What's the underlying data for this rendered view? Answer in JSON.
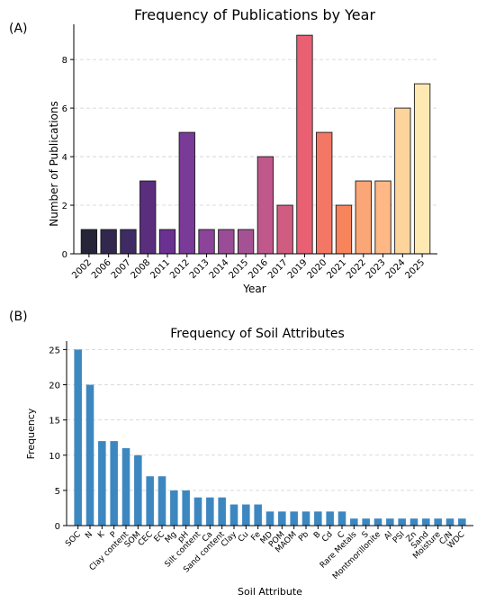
{
  "chart_data": [
    {
      "panel_label": "(A)",
      "type": "bar",
      "title": "Frequency of Publications by Year",
      "xlabel": "Year",
      "ylabel": "Number of Publications",
      "ylim": [
        0,
        9.45
      ],
      "yticks": [
        0,
        2,
        4,
        6,
        8
      ],
      "grid": "y-dashed",
      "categories": [
        "2002",
        "2006",
        "2007",
        "2008",
        "2011",
        "2012",
        "2013",
        "2014",
        "2015",
        "2016",
        "2017",
        "2019",
        "2020",
        "2021",
        "2022",
        "2023",
        "2024",
        "2025"
      ],
      "values": [
        1,
        1,
        1,
        3,
        1,
        5,
        1,
        1,
        1,
        4,
        2,
        9,
        5,
        2,
        3,
        3,
        6,
        7
      ],
      "colors": [
        "#262438",
        "#32284d",
        "#3e2b63",
        "#5a2d7d",
        "#6b3190",
        "#7a3a98",
        "#8b449a",
        "#9a4c97",
        "#a55295",
        "#c0588c",
        "#d15c82",
        "#e86072",
        "#f47765",
        "#f8845c",
        "#fba676",
        "#fdb886",
        "#fed49d",
        "#fee9b2"
      ]
    },
    {
      "panel_label": "(B)",
      "type": "bar",
      "title": "Frequency of Soil Attributes",
      "xlabel": "Soil Attribute",
      "ylabel": "Frequency",
      "ylim": [
        0,
        26.2
      ],
      "yticks": [
        0,
        5,
        10,
        15,
        20,
        25
      ],
      "grid": "y-dashed",
      "bar_color": "#3d87c0",
      "categories": [
        "SOC",
        "N",
        "K",
        "P",
        "Clay content",
        "SOM",
        "CEC",
        "EC",
        "Mg",
        "pH",
        "Silt content",
        "Ca",
        "Sand content",
        "Clay",
        "Cu",
        "Fe",
        "MD",
        "POM",
        "MAOM",
        "Pb",
        "B",
        "Cd",
        "C",
        "Rare Metals",
        "S",
        "Montmorillonite",
        "Al",
        "PSI",
        "Zn",
        "Sand",
        "Moisture",
        "C/N",
        "WDC"
      ],
      "values": [
        25,
        20,
        12,
        12,
        11,
        10,
        7,
        7,
        5,
        5,
        4,
        4,
        4,
        3,
        3,
        3,
        2,
        2,
        2,
        2,
        2,
        2,
        2,
        1,
        1,
        1,
        1,
        1,
        1,
        1,
        1,
        1,
        1
      ]
    }
  ]
}
